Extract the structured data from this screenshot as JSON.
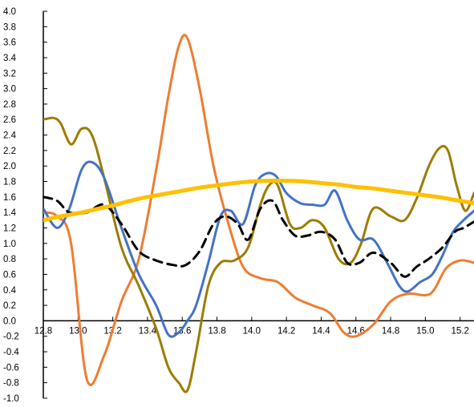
{
  "chart_data": {
    "type": "line",
    "title": "",
    "xlabel": "",
    "ylabel": "",
    "xlim": [
      12.8,
      15.28
    ],
    "ylim": [
      -1.0,
      4.0
    ],
    "grid": false,
    "legend": "none",
    "x_ticks": [
      "12.8",
      "13.0",
      "13.2",
      "13.4",
      "13.6",
      "13.8",
      "14.0",
      "14.2",
      "14.4",
      "14.6",
      "14.8",
      "15.0",
      "15.2"
    ],
    "y_ticks": [
      "4.0",
      "3.8",
      "3.6",
      "3.4",
      "3.2",
      "3.0",
      "2.8",
      "2.6",
      "2.4",
      "2.2",
      "2.0",
      "1.8",
      "1.6",
      "1.4",
      "1.2",
      "1.0",
      "0.8",
      "0.6",
      "0.4",
      "0.2",
      "0.0",
      "-0.2",
      "-0.4",
      "-0.6",
      "-0.8",
      "-1.0"
    ],
    "series": [
      {
        "color": "#ED7D31",
        "width": 3,
        "dash": "",
        "x": [
          12.8,
          12.88,
          12.96,
          13.05,
          13.15,
          13.25,
          13.35,
          13.45,
          13.52,
          13.58,
          13.63,
          13.7,
          13.78,
          13.86,
          13.95,
          14.05,
          14.15,
          14.25,
          14.35,
          14.45,
          14.53,
          14.6,
          14.7,
          14.8,
          14.9,
          15.0,
          15.05,
          15.12,
          15.2,
          15.28
        ],
        "y": [
          1.4,
          1.35,
          1.0,
          -0.75,
          -0.45,
          0.25,
          0.8,
          1.95,
          2.9,
          3.55,
          3.65,
          3.0,
          2.0,
          1.3,
          0.7,
          0.55,
          0.5,
          0.3,
          0.2,
          0.1,
          -0.15,
          -0.2,
          -0.05,
          0.25,
          0.35,
          0.33,
          0.4,
          0.68,
          0.78,
          0.75
        ]
      },
      {
        "color": "#9C7C00",
        "width": 3,
        "dash": "",
        "x": [
          12.8,
          12.86,
          12.9,
          12.96,
          13.02,
          13.08,
          13.15,
          13.25,
          13.35,
          13.45,
          13.52,
          13.58,
          13.63,
          13.68,
          13.75,
          13.82,
          13.9,
          13.98,
          14.05,
          14.1,
          14.15,
          14.22,
          14.28,
          14.35,
          14.42,
          14.5,
          14.57,
          14.63,
          14.7,
          14.8,
          14.88,
          14.95,
          15.02,
          15.08,
          15.13,
          15.18,
          15.23,
          15.28
        ],
        "y": [
          2.6,
          2.62,
          2.55,
          2.28,
          2.48,
          2.4,
          1.85,
          0.95,
          0.45,
          -0.1,
          -0.6,
          -0.8,
          -0.9,
          -0.4,
          0.45,
          0.75,
          0.78,
          0.95,
          1.5,
          1.75,
          1.75,
          1.25,
          1.2,
          1.3,
          1.2,
          0.8,
          0.75,
          1.0,
          1.45,
          1.35,
          1.3,
          1.58,
          2.0,
          2.23,
          2.2,
          1.75,
          1.42,
          1.65
        ]
      },
      {
        "color": "#4472C4",
        "width": 3,
        "dash": "",
        "x": [
          12.8,
          12.88,
          12.95,
          13.02,
          13.08,
          13.15,
          13.25,
          13.35,
          13.45,
          13.52,
          13.58,
          13.63,
          13.68,
          13.75,
          13.82,
          13.88,
          13.95,
          14.02,
          14.08,
          14.14,
          14.2,
          14.28,
          14.35,
          14.42,
          14.48,
          14.55,
          14.62,
          14.7,
          14.78,
          14.85,
          14.9,
          14.97,
          15.04,
          15.1,
          15.16,
          15.22,
          15.28
        ],
        "y": [
          1.45,
          1.2,
          1.45,
          1.95,
          2.05,
          1.85,
          1.2,
          0.6,
          0.2,
          -0.18,
          -0.15,
          0.0,
          0.2,
          0.75,
          1.35,
          1.42,
          1.25,
          1.75,
          1.9,
          1.87,
          1.65,
          1.52,
          1.5,
          1.5,
          1.68,
          1.3,
          1.05,
          1.05,
          0.75,
          0.45,
          0.38,
          0.5,
          0.6,
          0.85,
          1.15,
          1.3,
          1.42
        ]
      },
      {
        "color": "#000000",
        "width": 3,
        "dash": "11 7",
        "x": [
          12.8,
          12.88,
          12.95,
          13.05,
          13.15,
          13.25,
          13.35,
          13.45,
          13.55,
          13.62,
          13.7,
          13.78,
          13.85,
          13.92,
          13.98,
          14.05,
          14.12,
          14.18,
          14.25,
          14.32,
          14.4,
          14.48,
          14.55,
          14.62,
          14.7,
          14.8,
          14.88,
          14.95,
          15.02,
          15.1,
          15.17,
          15.22,
          15.28
        ],
        "y": [
          1.6,
          1.55,
          1.4,
          1.4,
          1.5,
          1.25,
          0.9,
          0.78,
          0.72,
          0.72,
          0.9,
          1.25,
          1.35,
          1.25,
          1.05,
          1.45,
          1.55,
          1.3,
          1.1,
          1.1,
          1.15,
          1.05,
          0.75,
          0.75,
          0.88,
          0.75,
          0.57,
          0.7,
          0.8,
          0.95,
          1.15,
          1.2,
          1.28
        ]
      },
      {
        "color": "#FFC000",
        "width": 5,
        "dash": "",
        "x": [
          12.8,
          12.9,
          13.0,
          13.1,
          13.2,
          13.3,
          13.4,
          13.5,
          13.6,
          13.7,
          13.8,
          13.9,
          14.0,
          14.1,
          14.2,
          14.3,
          14.4,
          14.5,
          14.6,
          14.7,
          14.8,
          14.9,
          15.0,
          15.1,
          15.2,
          15.28
        ],
        "y": [
          1.3,
          1.35,
          1.39,
          1.44,
          1.49,
          1.55,
          1.6,
          1.64,
          1.68,
          1.72,
          1.75,
          1.78,
          1.8,
          1.81,
          1.81,
          1.8,
          1.78,
          1.76,
          1.73,
          1.71,
          1.68,
          1.65,
          1.62,
          1.59,
          1.55,
          1.52
        ]
      }
    ]
  }
}
